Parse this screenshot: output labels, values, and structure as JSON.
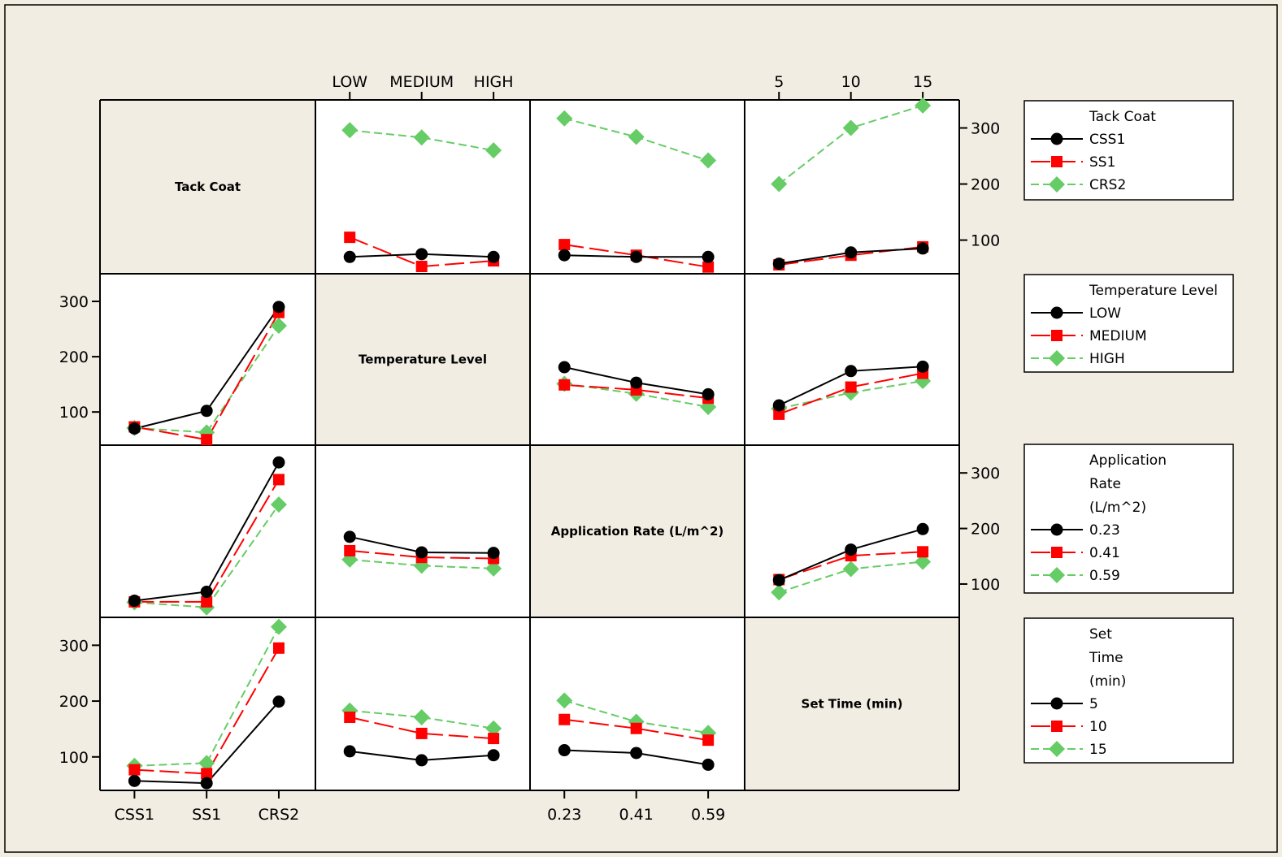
{
  "colors": {
    "background": "#f2ede3",
    "panel": "#ffffff",
    "diagonal": "#f2ede3",
    "level1": "#000000",
    "level2": "#ff0000",
    "level3": "#66cc66"
  },
  "chart_data": {
    "type": "line",
    "plot_kind": "interaction-matrix",
    "factors": [
      {
        "name": "Tack Coat",
        "label": "Tack Coat",
        "levels": [
          "CSS1",
          "SS1",
          "CRS2"
        ],
        "legend_title_lines": [
          "Tack Coat"
        ],
        "tick_labels": [
          "CSS1",
          "SS1",
          "CRS2"
        ]
      },
      {
        "name": "Temperature Level",
        "label": "Temperature Level",
        "levels": [
          "LOW",
          "MEDIUM",
          "HIGH"
        ],
        "legend_title_lines": [
          "Temperature Level"
        ],
        "tick_labels": [
          "LOW",
          "MEDIUM",
          "HIGH"
        ]
      },
      {
        "name": "Application Rate (L/m^2)",
        "label": "Application Rate (L/m^2)",
        "levels": [
          "0.23",
          "0.41",
          "0.59"
        ],
        "legend_title_lines": [
          "Application",
          "Rate",
          "(L/m^2)"
        ],
        "tick_labels": [
          "0.23",
          "0.41",
          "0.59"
        ]
      },
      {
        "name": "Set Time (min)",
        "label": "Set Time (min)",
        "levels": [
          "5",
          "10",
          "15"
        ],
        "legend_title_lines": [
          "Set",
          "Time",
          "(min)"
        ],
        "tick_labels": [
          "5",
          "10",
          "15"
        ]
      }
    ],
    "y_ticks": [
      "100",
      "200",
      "300"
    ],
    "y_tick_values": [
      100,
      200,
      300
    ],
    "ylim": [
      40,
      350
    ],
    "panels": [
      {
        "row": 0,
        "col": 1,
        "series": [
          [
            70,
            75,
            70
          ],
          [
            105,
            53,
            63
          ],
          [
            296,
            283,
            260
          ]
        ]
      },
      {
        "row": 0,
        "col": 2,
        "series": [
          [
            73,
            70,
            70
          ],
          [
            92,
            73,
            52
          ],
          [
            317,
            284,
            242
          ]
        ]
      },
      {
        "row": 0,
        "col": 3,
        "series": [
          [
            58,
            78,
            85
          ],
          [
            56,
            73,
            88
          ],
          [
            200,
            300,
            340
          ]
        ]
      },
      {
        "row": 1,
        "col": 0,
        "series": [
          [
            70,
            102,
            290
          ],
          [
            73,
            50,
            280
          ],
          [
            71,
            63,
            256
          ]
        ]
      },
      {
        "row": 1,
        "col": 2,
        "series": [
          [
            181,
            153,
            132
          ],
          [
            149,
            140,
            125
          ],
          [
            151,
            133,
            109
          ]
        ]
      },
      {
        "row": 1,
        "col": 3,
        "series": [
          [
            112,
            174,
            182
          ],
          [
            96,
            145,
            170
          ],
          [
            106,
            135,
            156
          ]
        ]
      },
      {
        "row": 2,
        "col": 0,
        "series": [
          [
            70,
            86,
            319
          ],
          [
            68,
            68,
            288
          ],
          [
            67,
            58,
            243
          ]
        ]
      },
      {
        "row": 2,
        "col": 1,
        "series": [
          [
            185,
            157,
            156
          ],
          [
            160,
            148,
            146
          ],
          [
            144,
            133,
            128
          ]
        ]
      },
      {
        "row": 2,
        "col": 3,
        "series": [
          [
            107,
            162,
            199
          ],
          [
            108,
            151,
            158
          ],
          [
            85,
            127,
            140
          ]
        ]
      },
      {
        "row": 3,
        "col": 0,
        "series": [
          [
            57,
            53,
            199
          ],
          [
            77,
            70,
            295
          ],
          [
            84,
            89,
            333
          ]
        ]
      },
      {
        "row": 3,
        "col": 1,
        "series": [
          [
            110,
            94,
            103
          ],
          [
            171,
            142,
            133
          ],
          [
            183,
            171,
            151
          ]
        ]
      },
      {
        "row": 3,
        "col": 2,
        "series": [
          [
            112,
            107,
            86
          ],
          [
            167,
            151,
            130
          ],
          [
            201,
            163,
            143
          ]
        ]
      }
    ],
    "legend_placement": "right",
    "grid": false
  }
}
